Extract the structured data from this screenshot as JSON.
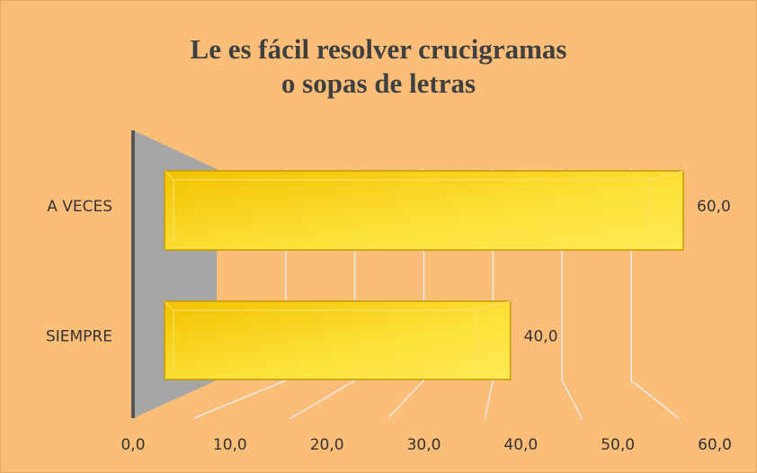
{
  "chart_data": {
    "type": "bar3d",
    "orientation": "horizontal",
    "title": [
      "Le es fácil resolver crucigramas",
      "o sopas de letras"
    ],
    "categories": [
      "A VECES",
      "SIEMPRE"
    ],
    "values": [
      60,
      40
    ],
    "value_labels": [
      "60,0",
      "40,0"
    ],
    "color": "#f7d21a",
    "xlim": [
      0,
      60
    ],
    "xticks": [
      {
        "value": 0,
        "label": "0,0"
      },
      {
        "value": 10,
        "label": "10,0"
      },
      {
        "value": 20,
        "label": "20,0"
      },
      {
        "value": 30,
        "label": "30,0"
      },
      {
        "value": 40,
        "label": "40,0"
      },
      {
        "value": 50,
        "label": "50,0"
      },
      {
        "value": 60,
        "label": "60,0"
      }
    ],
    "grid": true
  }
}
